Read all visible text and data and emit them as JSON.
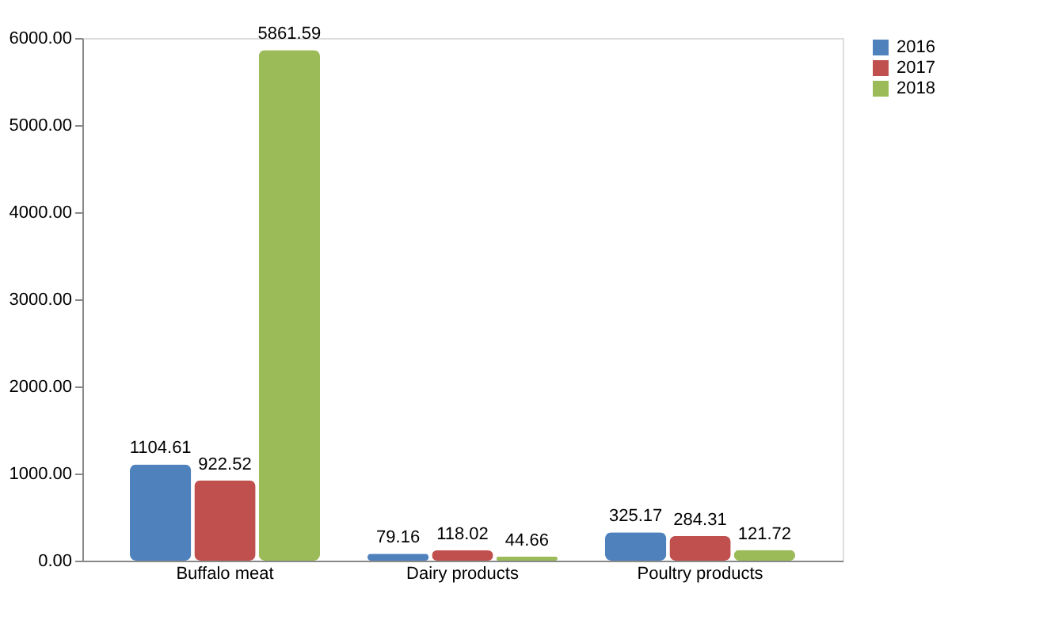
{
  "chart_data": {
    "type": "bar",
    "categories": [
      "Buffalo meat",
      "Dairy products",
      "Poultry products"
    ],
    "series": [
      {
        "name": "2016",
        "color": "#4f81bd",
        "values": [
          1104.61,
          79.16,
          325.17
        ]
      },
      {
        "name": "2017",
        "color": "#c0504d",
        "values": [
          922.52,
          118.02,
          284.31
        ]
      },
      {
        "name": "2018",
        "color": "#9bbb59",
        "values": [
          5861.59,
          44.66,
          121.72
        ]
      }
    ],
    "ylim": [
      0,
      6000
    ],
    "yticks": [
      {
        "value": 0,
        "label": "0.00"
      },
      {
        "value": 1000,
        "label": "1000.00"
      },
      {
        "value": 2000,
        "label": "2000.00"
      },
      {
        "value": 3000,
        "label": "3000.00"
      },
      {
        "value": 4000,
        "label": "4000.00"
      },
      {
        "value": 5000,
        "label": "5000.00"
      },
      {
        "value": 6000,
        "label": "6000.00"
      }
    ],
    "data_labels": true,
    "legend": "right",
    "grid": false
  }
}
